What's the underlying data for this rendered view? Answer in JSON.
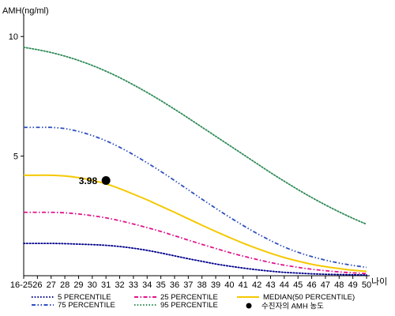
{
  "chart_data": {
    "type": "line",
    "ylabel": "AMH(ng/ml)",
    "xlabel": "나이",
    "categories": [
      "16-25",
      "26",
      "27",
      "28",
      "29",
      "30",
      "31",
      "32",
      "33",
      "34",
      "35",
      "36",
      "37",
      "38",
      "39",
      "40",
      "41",
      "42",
      "43",
      "44",
      "45",
      "46",
      "47",
      "48",
      "49",
      "50"
    ],
    "ylim": [
      0,
      10.8
    ],
    "yticks": [
      {
        "value": 5,
        "label": "5"
      },
      {
        "value": 10,
        "label": "10"
      }
    ],
    "grid": false,
    "legend_position": "bottom",
    "series": [
      {
        "name": "5 PERCENTILE",
        "color": "#00008b",
        "style": "dotted",
        "values": [
          1.35,
          1.35,
          1.35,
          1.34,
          1.32,
          1.3,
          1.27,
          1.22,
          1.15,
          1.06,
          0.95,
          0.83,
          0.71,
          0.6,
          0.49,
          0.4,
          0.32,
          0.25,
          0.19,
          0.14,
          0.11,
          0.08,
          0.06,
          0.05,
          0.04,
          0.03
        ]
      },
      {
        "name": "25 PERCENTILE",
        "color": "#e0148c",
        "style": "dash-dot",
        "values": [
          2.65,
          2.65,
          2.65,
          2.63,
          2.58,
          2.51,
          2.42,
          2.3,
          2.16,
          2.01,
          1.85,
          1.67,
          1.49,
          1.31,
          1.14,
          0.97,
          0.82,
          0.68,
          0.55,
          0.44,
          0.35,
          0.27,
          0.21,
          0.16,
          0.12,
          0.09
        ]
      },
      {
        "name": "MEDIAN(50 PERCENTILE)",
        "color": "#f5c800",
        "style": "solid",
        "values": [
          4.2,
          4.2,
          4.2,
          4.17,
          4.1,
          3.99,
          3.84,
          3.64,
          3.41,
          3.17,
          2.91,
          2.65,
          2.38,
          2.11,
          1.85,
          1.6,
          1.36,
          1.14,
          0.94,
          0.76,
          0.61,
          0.48,
          0.38,
          0.3,
          0.23,
          0.18
        ]
      },
      {
        "name": "75 PERCENTILE",
        "color": "#2e4fbf",
        "style": "dash-dot-dot",
        "values": [
          6.2,
          6.2,
          6.2,
          6.15,
          6.03,
          5.86,
          5.64,
          5.37,
          5.06,
          4.72,
          4.36,
          3.98,
          3.59,
          3.2,
          2.82,
          2.45,
          2.1,
          1.77,
          1.47,
          1.2,
          0.98,
          0.8,
          0.65,
          0.53,
          0.43,
          0.35
        ]
      },
      {
        "name": "95 PERCENTILE",
        "color": "#2e8b57",
        "style": "dotted",
        "values": [
          9.55,
          9.45,
          9.33,
          9.18,
          9.0,
          8.79,
          8.55,
          8.28,
          7.98,
          7.66,
          7.32,
          6.96,
          6.59,
          6.21,
          5.83,
          5.45,
          5.07,
          4.69,
          4.31,
          3.95,
          3.6,
          3.27,
          2.96,
          2.67,
          2.4,
          2.15
        ]
      }
    ],
    "points": [
      {
        "name": "수진자의 AMH 농도",
        "x": "31",
        "y": 3.98,
        "label": "3.98",
        "color": "#000000"
      }
    ]
  }
}
